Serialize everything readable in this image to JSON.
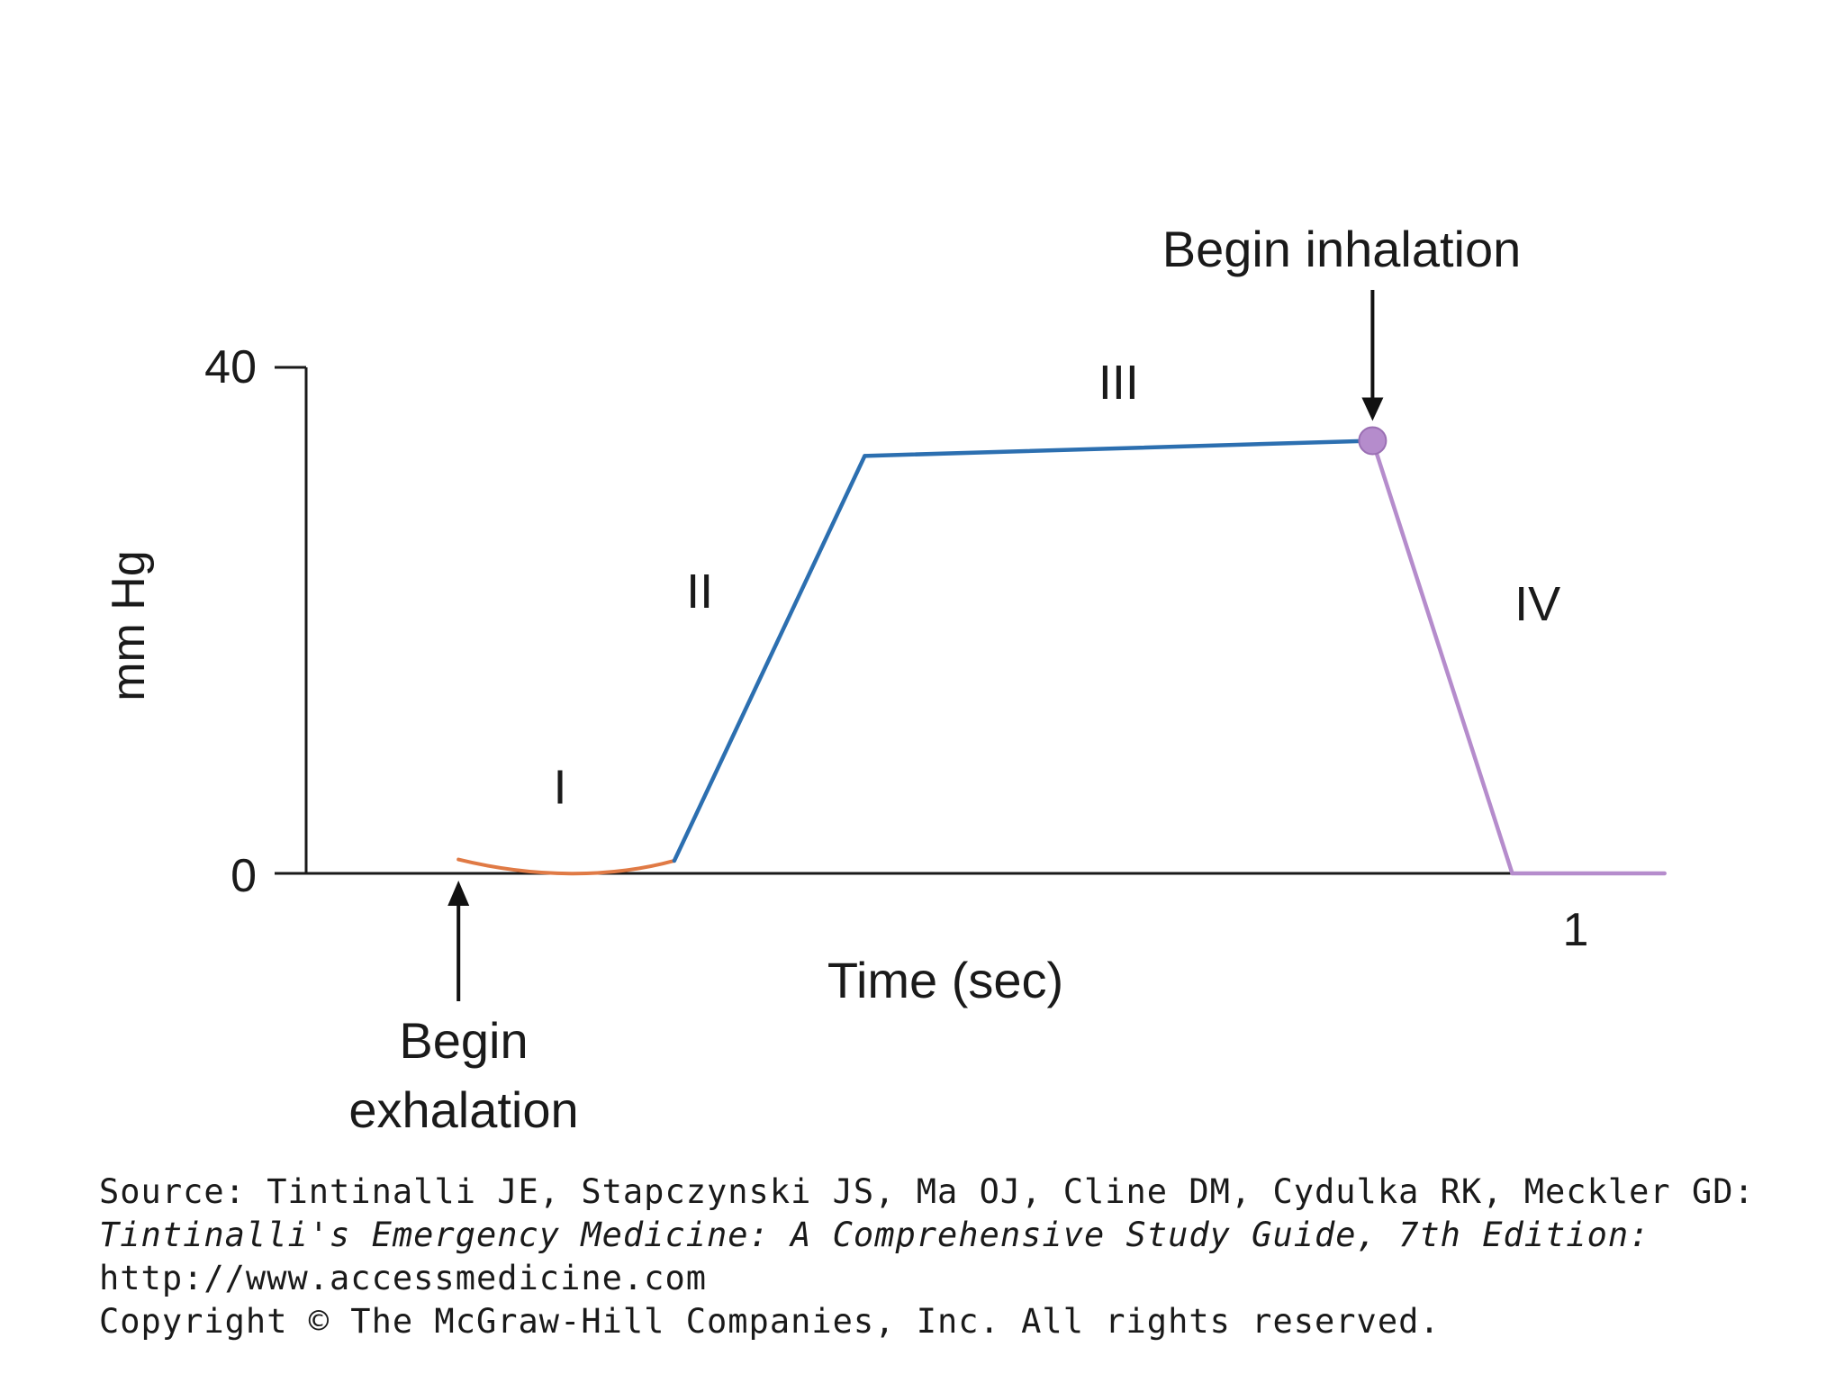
{
  "chart_data": {
    "type": "line",
    "title": "",
    "xlabel": "Time (sec)",
    "ylabel": "mm Hg",
    "xlim": [
      0,
      1.1
    ],
    "ylim": [
      0,
      40
    ],
    "y_ticks": [
      {
        "value": 0,
        "label": "0"
      },
      {
        "value": 40,
        "label": "40"
      }
    ],
    "x_tick_label": {
      "value": 1,
      "label": "1"
    },
    "series": [
      {
        "name": "I",
        "color": "#e07a45",
        "x": [
          0.12,
          0.18,
          0.24,
          0.29
        ],
        "y": [
          1.1,
          0.2,
          0.2,
          1.0
        ]
      },
      {
        "name": "II",
        "color": "#2c6fb0",
        "x": [
          0.29,
          0.44
        ],
        "y": [
          1.0,
          33
        ]
      },
      {
        "name": "III",
        "color": "#2c6fb0",
        "x": [
          0.44,
          0.84
        ],
        "y": [
          33,
          34.2
        ]
      },
      {
        "name": "IV",
        "color": "#b58ccc",
        "x": [
          0.84,
          0.95,
          1.07
        ],
        "y": [
          34.2,
          0,
          0
        ]
      }
    ],
    "phase_labels": [
      {
        "label": "I",
        "x": 0.2,
        "y": 5.5
      },
      {
        "label": "II",
        "x": 0.31,
        "y": 21
      },
      {
        "label": "III",
        "x": 0.64,
        "y": 37.5
      },
      {
        "label": "IV",
        "x": 0.97,
        "y": 20
      }
    ],
    "annotations": [
      {
        "text": "Begin inhalation",
        "x": 0.84,
        "y": 34.2,
        "arrow": "down"
      },
      {
        "text_lines": [
          "Begin",
          "exhalation"
        ],
        "x": 0.12,
        "y": 0,
        "arrow": "up"
      }
    ],
    "marker": {
      "x": 0.84,
      "y": 34.2,
      "color": "#b58ccc"
    }
  },
  "source": {
    "line1": "Source: Tintinalli JE, Stapczynski JS, Ma OJ, Cline DM, Cydulka RK, Meckler GD:",
    "line2": "Tintinalli's Emergency Medicine: A Comprehensive Study Guide, 7th Edition:",
    "line3": "http://www.accessmedicine.com",
    "line4": "Copyright © The McGraw-Hill Companies, Inc. All rights reserved."
  }
}
